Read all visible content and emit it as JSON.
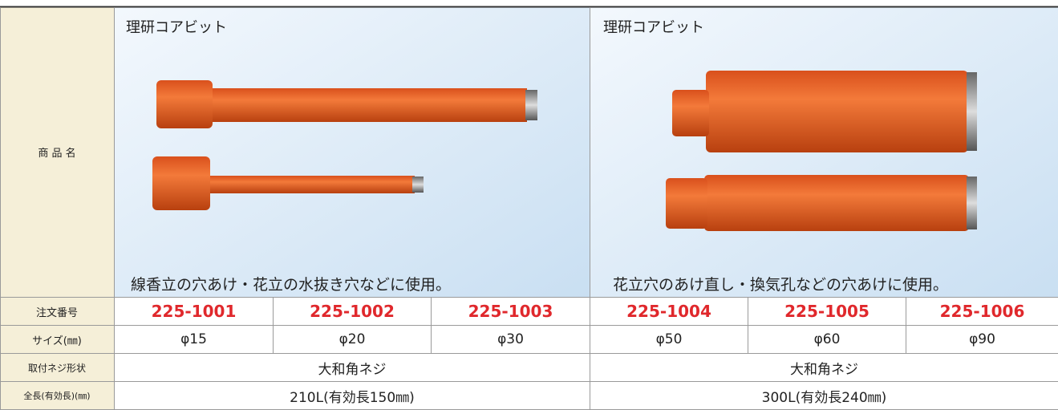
{
  "header_column": {
    "product_name": "商 品 名",
    "order_number": "注文番号",
    "size": "サイズ(㎜)",
    "thread": "取付ネジ形状",
    "length": "全長(有効長)(㎜)"
  },
  "products": [
    {
      "name": "理研コアビット",
      "usage": "線香立の穴あけ・花立の水抜き穴などに使用。",
      "thread": "大和角ネジ",
      "length": "210L(有効長150㎜)",
      "items": [
        {
          "order_number": "225-1001",
          "size": "φ15"
        },
        {
          "order_number": "225-1002",
          "size": "φ20"
        },
        {
          "order_number": "225-1003",
          "size": "φ30"
        }
      ]
    },
    {
      "name": "理研コアビット",
      "usage": "花立穴のあけ直し・換気孔などの穴あけに使用。",
      "thread": "大和角ネジ",
      "length": "300L(有効長240㎜)",
      "items": [
        {
          "order_number": "225-1004",
          "size": "φ50"
        },
        {
          "order_number": "225-1005",
          "size": "φ60"
        },
        {
          "order_number": "225-1006",
          "size": "φ90"
        }
      ]
    }
  ]
}
